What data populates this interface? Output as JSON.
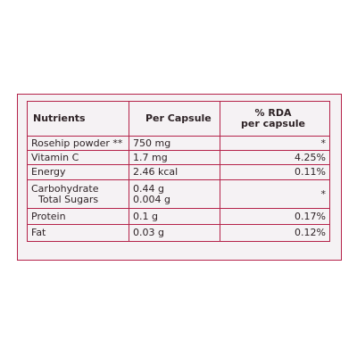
{
  "table": {
    "headers": {
      "nutrients": "Nutrients",
      "per_capsule": "Per Capsule",
      "rda_line1": "% RDA",
      "rda_line2": "per capsule"
    },
    "rows": [
      {
        "name": "Rosehip powder **",
        "value": "750 mg",
        "rda": "*"
      },
      {
        "name": "Vitamin C",
        "value": "1.7 mg",
        "rda": "4.25%"
      },
      {
        "name": "Energy",
        "value": "2.46 kcal",
        "rda": "0.11%"
      },
      {
        "name": "Carbohydrate",
        "sub_name": "Total Sugars",
        "value": "0.44 g",
        "sub_value": "0.004 g",
        "rda": "*"
      },
      {
        "name": "Protein",
        "value": "0.1 g",
        "rda": "0.17%"
      },
      {
        "name": "Fat",
        "value": "0.03 g",
        "rda": "0.12%"
      }
    ]
  },
  "colors": {
    "border": "#b5234a",
    "panel_background": "#f5f2f4",
    "text": "#2e2326"
  }
}
